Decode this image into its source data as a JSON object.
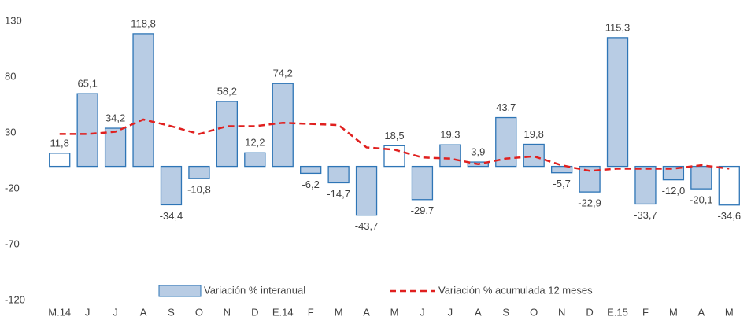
{
  "chart_data": {
    "type": "bar_line",
    "categories": [
      "M.14",
      "J",
      "J",
      "A",
      "S",
      "O",
      "N",
      "D",
      "E.14",
      "F",
      "M",
      "A",
      "M",
      "J",
      "J",
      "A",
      "S",
      "O",
      "N",
      "D",
      "E.15",
      "F",
      "M",
      "A",
      "M"
    ],
    "series": [
      {
        "name": "Variación % interanual",
        "type": "bar",
        "color": "#b8cce4",
        "edge_color": "#2e75b6",
        "colors": [
          "#ffffff",
          "#b8cce4",
          "#b8cce4",
          "#b8cce4",
          "#b8cce4",
          "#b8cce4",
          "#b8cce4",
          "#b8cce4",
          "#b8cce4",
          "#b8cce4",
          "#b8cce4",
          "#b8cce4",
          "#ffffff",
          "#b8cce4",
          "#b8cce4",
          "#b8cce4",
          "#b8cce4",
          "#b8cce4",
          "#b8cce4",
          "#b8cce4",
          "#b8cce4",
          "#b8cce4",
          "#b8cce4",
          "#b8cce4",
          "#ffffff"
        ],
        "values": [
          11.8,
          65.1,
          34.2,
          118.8,
          -34.4,
          -10.8,
          58.2,
          12.2,
          74.2,
          -6.2,
          -14.7,
          -43.7,
          18.5,
          -29.7,
          19.3,
          3.9,
          43.7,
          19.8,
          -5.7,
          -22.9,
          115.3,
          -33.7,
          -12.0,
          -20.1,
          -34.6
        ],
        "value_labels": [
          "11,8",
          "65,1",
          "34,2",
          "118,8",
          "-34,4",
          "-10,8",
          "58,2",
          "12,2",
          "74,2",
          "-6,2",
          "-14,7",
          "-43,7",
          "18,5",
          "-29,7",
          "19,3",
          "3,9",
          "43,7",
          "19,8",
          "-5,7",
          "-22,9",
          "115,3",
          "-33,7",
          "-12,0",
          "-20,1",
          "-34,6"
        ]
      },
      {
        "name": "Variación % acumulada 12 meses",
        "type": "line",
        "color": "#e0201f",
        "dashed": true,
        "values": [
          29,
          29,
          31,
          42,
          36,
          29,
          36,
          36,
          39,
          38,
          37,
          17,
          15,
          8,
          7,
          2,
          7,
          9,
          1,
          -4,
          -2,
          -2,
          -2,
          1,
          -2
        ]
      }
    ],
    "ylim": [
      -120,
      130
    ],
    "yticks": [
      -120,
      -70,
      -20,
      30,
      80,
      130
    ],
    "grid": false,
    "legend": "bottom"
  }
}
